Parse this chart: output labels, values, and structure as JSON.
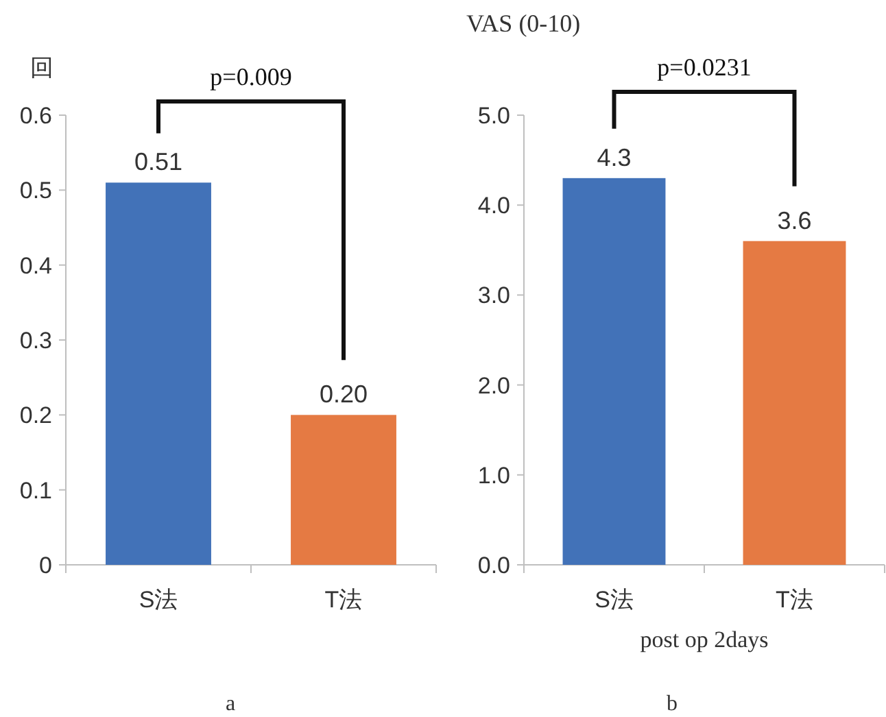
{
  "chart_data": [
    {
      "type": "bar",
      "ylabel": "回",
      "categories": [
        "S法",
        "T法"
      ],
      "values": [
        0.51,
        0.2
      ],
      "colors": [
        "#4272b8",
        "#e57a43"
      ],
      "value_labels": [
        "0.51",
        "0.20"
      ],
      "ylim": [
        0,
        0.6
      ],
      "yticks": [
        0,
        0.1,
        0.2,
        0.3,
        0.4,
        0.5,
        0.6
      ],
      "annotations": [
        "p=0.009",
        "a"
      ]
    },
    {
      "type": "bar",
      "title": "VAS (0-10)",
      "xlabel": "post op 2days",
      "categories": [
        "S法",
        "T法"
      ],
      "values": [
        4.3,
        3.6
      ],
      "colors": [
        "#4272b8",
        "#e57a43"
      ],
      "value_labels": [
        "4.3",
        "3.6"
      ],
      "ylim": [
        0,
        5
      ],
      "yticks": [
        {
          "value": 0,
          "label": "0.0"
        },
        {
          "value": 1,
          "label": "1.0"
        },
        {
          "value": 2,
          "label": "2.0"
        },
        {
          "value": 3,
          "label": "3.0"
        },
        {
          "value": 4,
          "label": "4.0"
        },
        {
          "value": 5,
          "label": "5.0"
        }
      ],
      "annotations": [
        "p=0.0231",
        "b"
      ]
    }
  ]
}
